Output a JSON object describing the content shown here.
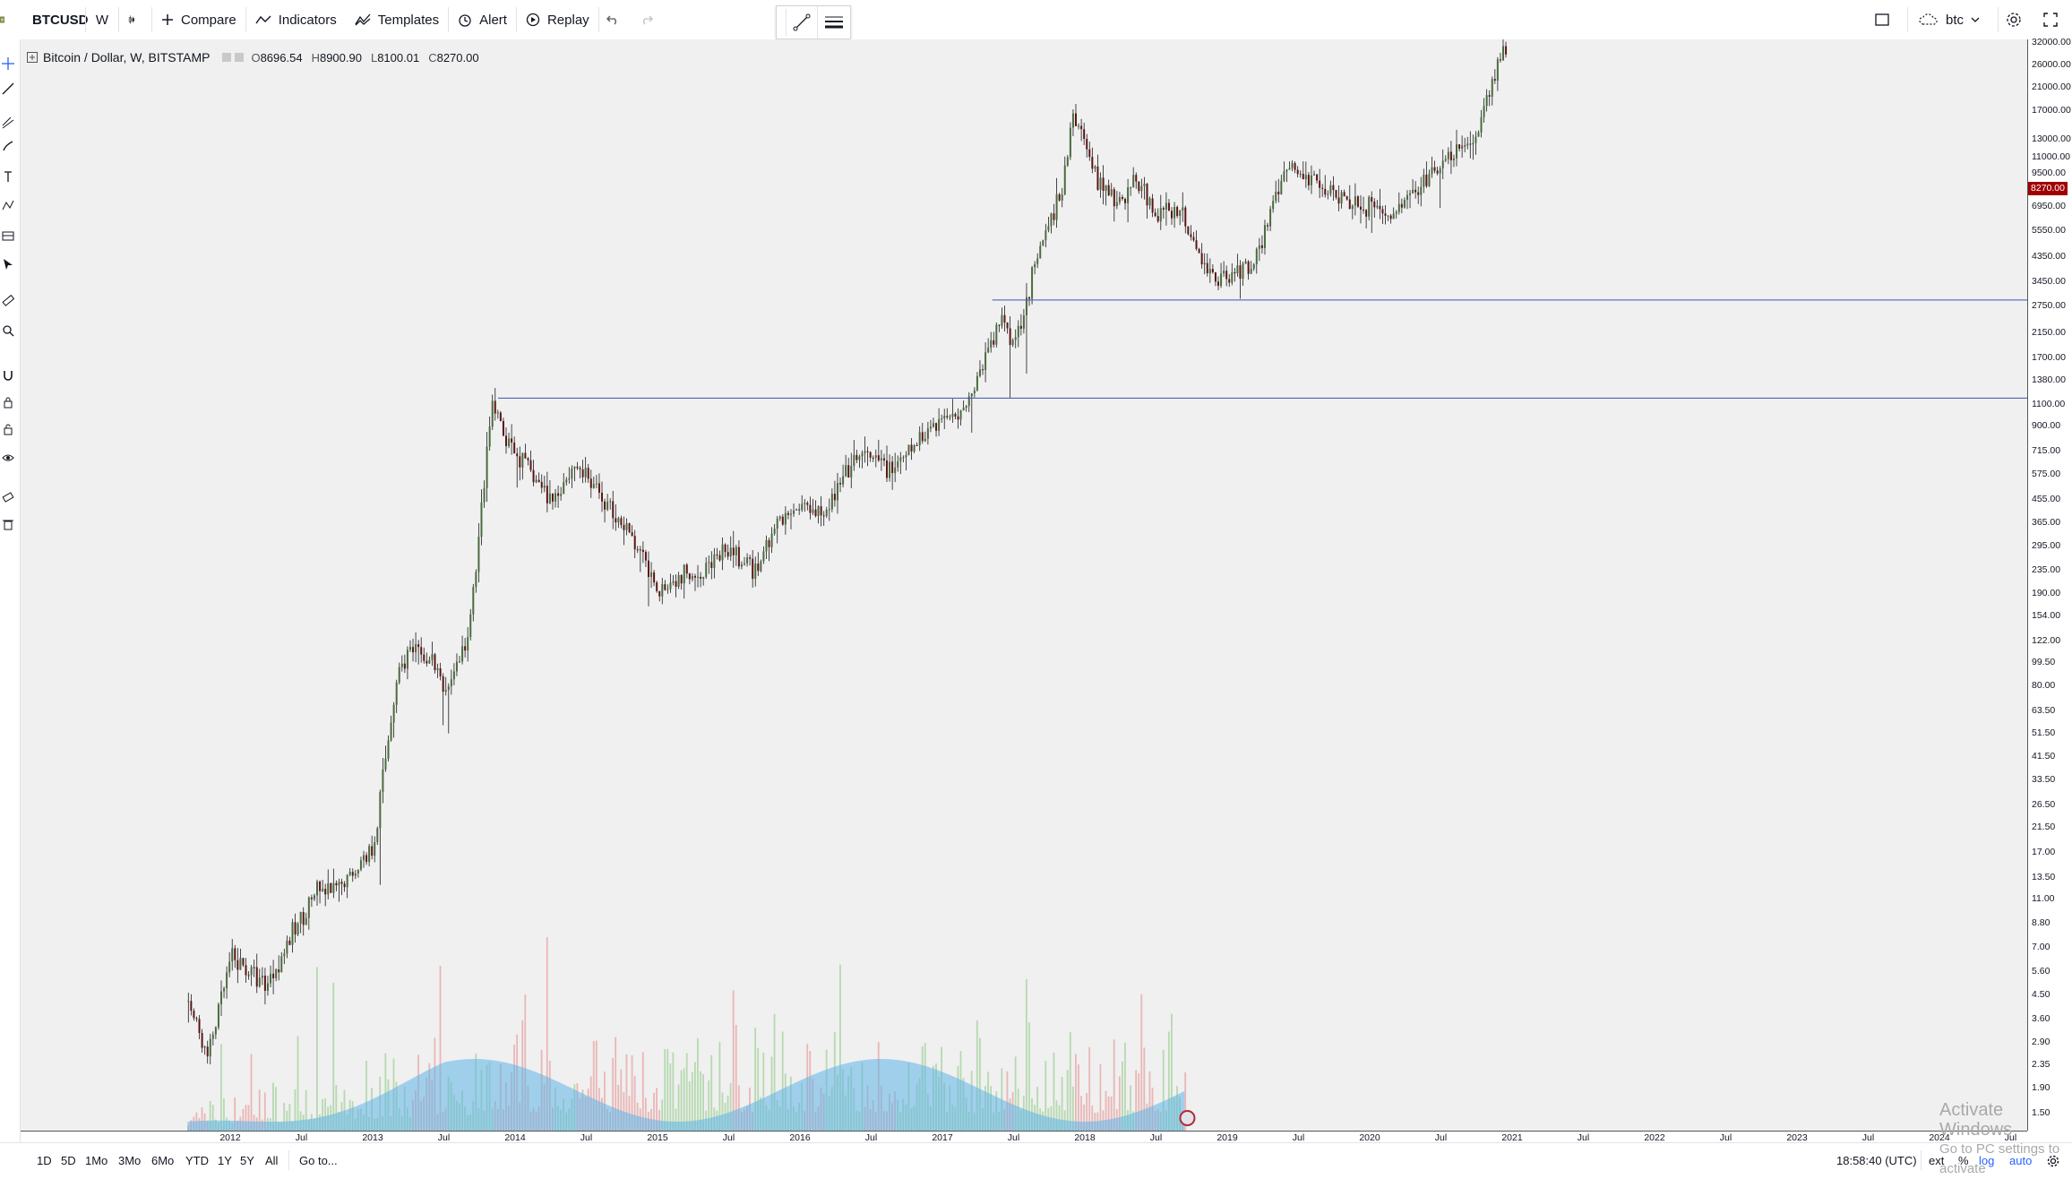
{
  "toolbar": {
    "symbol": "BTCUSD",
    "interval": "W",
    "compare": "Compare",
    "indicators": "Indicators",
    "templates": "Templates",
    "alert": "Alert",
    "replay": "Replay",
    "layout_name": "btc"
  },
  "legend": {
    "title": "Bitcoin / Dollar, W, BITSTAMP",
    "open_label": "O",
    "open": "8696.54",
    "high_label": "H",
    "high": "8900.90",
    "low_label": "L",
    "low": "8100.01",
    "close_label": "C",
    "close": "8270.00"
  },
  "price_scale": {
    "last_price": "8270.00",
    "last_price_color": "#a00000",
    "ticks": [
      "32000.00",
      "26000.00",
      "21000.00",
      "17000.00",
      "13000.00",
      "11000.00",
      "9500.00",
      "6950.00",
      "5550.00",
      "4350.00",
      "3450.00",
      "2750.00",
      "2150.00",
      "1700.00",
      "1380.00",
      "1100.00",
      "900.00",
      "715.00",
      "575.00",
      "455.00",
      "365.00",
      "295.00",
      "235.00",
      "190.00",
      "154.00",
      "122.00",
      "99.50",
      "80.00",
      "63.50",
      "51.50",
      "41.50",
      "33.50",
      "26.50",
      "21.50",
      "17.00",
      "13.50",
      "11.00",
      "8.80",
      "7.00",
      "5.60",
      "4.50",
      "3.60",
      "2.90",
      "2.35",
      "1.90",
      "1.50"
    ]
  },
  "time_scale": {
    "ticks": [
      "2012",
      "Jul",
      "2013",
      "Jul",
      "2014",
      "Jul",
      "2015",
      "Jul",
      "2016",
      "Jul",
      "2017",
      "Jul",
      "2018",
      "Jul",
      "2019",
      "Jul",
      "2020",
      "Jul",
      "2021",
      "Jul",
      "2022",
      "Jul",
      "2023",
      "Jul",
      "2024",
      "Jul"
    ]
  },
  "horizontal_lines": [
    {
      "price": 1163,
      "color": "#3f51b5"
    },
    {
      "price": 2900,
      "color": "#3f51b5"
    }
  ],
  "bottom_bar": {
    "ranges": [
      "1D",
      "5D",
      "1Mo",
      "3Mo",
      "6Mo",
      "YTD",
      "1Y",
      "5Y",
      "All"
    ],
    "goto": "Go to...",
    "clock": "18:58:40 (UTC)",
    "ext": "ext",
    "percent": "%",
    "log": "log",
    "auto": "auto"
  },
  "watermark": {
    "line1": "Activate Windows",
    "line2": "Go to PC settings to activate"
  },
  "chart_data": {
    "type": "candlestick",
    "scale": "log",
    "price_range": [
      1.5,
      32000
    ],
    "time_range": [
      "2012",
      "Jul 2024"
    ],
    "series": [
      {
        "name": "BTCUSD",
        "points": [
          [
            "2011-09",
            4.8
          ],
          [
            "2011-11",
            2.5
          ],
          [
            "2012-01",
            6.3
          ],
          [
            "2012-04",
            5.0
          ],
          [
            "2012-08",
            11.5
          ],
          [
            "2012-10",
            11.8
          ],
          [
            "2013-01",
            18
          ],
          [
            "2013-03",
            90
          ],
          [
            "2013-04",
            110
          ],
          [
            "2013-06",
            100
          ],
          [
            "2013-07",
            75
          ],
          [
            "2013-09",
            125
          ],
          [
            "2013-11",
            1100
          ],
          [
            "2013-12",
            800
          ],
          [
            "2014-02",
            600
          ],
          [
            "2014-04",
            450
          ],
          [
            "2014-06",
            630
          ],
          [
            "2014-08",
            480
          ],
          [
            "2014-10",
            360
          ],
          [
            "2015-01",
            200
          ],
          [
            "2015-04",
            230
          ],
          [
            "2015-07",
            280
          ],
          [
            "2015-09",
            230
          ],
          [
            "2015-11",
            360
          ],
          [
            "2016-01",
            430
          ],
          [
            "2016-03",
            415
          ],
          [
            "2016-06",
            680
          ],
          [
            "2016-09",
            600
          ],
          [
            "2016-12",
            900
          ],
          [
            "2017-03",
            1100
          ],
          [
            "2017-06",
            2500
          ],
          [
            "2017-07",
            1950
          ],
          [
            "2017-09",
            4400
          ],
          [
            "2017-11",
            8000
          ],
          [
            "2017-12",
            16500
          ],
          [
            "2018-02",
            9000
          ],
          [
            "2018-04",
            7000
          ],
          [
            "2018-05",
            9000
          ],
          [
            "2018-07",
            6400
          ],
          [
            "2018-09",
            6500
          ],
          [
            "2018-11",
            4000
          ],
          [
            "2018-12",
            3500
          ],
          [
            "2019-03",
            4000
          ],
          [
            "2019-06",
            10000
          ],
          [
            "2019-09",
            8500
          ],
          [
            "2019-12",
            7200
          ],
          [
            "2020-03",
            6400
          ],
          [
            "2020-06",
            9200
          ],
          [
            "2020-10",
            13500
          ],
          [
            "2020-12",
            29000
          ]
        ]
      }
    ],
    "volume": "bars with blue moving-average area, 2011-2018"
  }
}
